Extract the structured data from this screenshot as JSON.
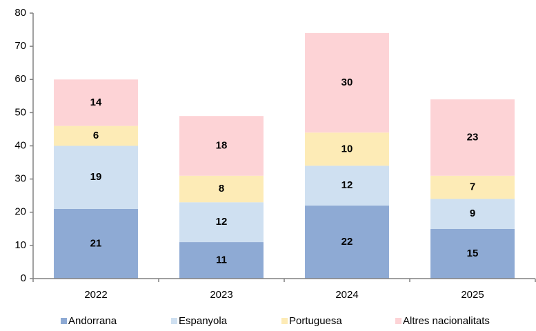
{
  "chart_data": {
    "type": "stacked_bar",
    "categories": [
      "2022",
      "2023",
      "2024",
      "2025"
    ],
    "series": [
      {
        "name": "Andorrana",
        "color": "#8eaad4",
        "values": [
          21,
          11,
          22,
          15
        ]
      },
      {
        "name": "Espanyola",
        "color": "#cfe0f1",
        "values": [
          19,
          12,
          12,
          9
        ]
      },
      {
        "name": "Portuguesa",
        "color": "#fdebb6",
        "values": [
          6,
          8,
          10,
          7
        ]
      },
      {
        "name": "Altres nacionalitats",
        "color": "#fdd3d6",
        "values": [
          14,
          18,
          30,
          23
        ]
      }
    ],
    "ylim": [
      0,
      80
    ],
    "yticks": [
      0,
      10,
      20,
      30,
      40,
      50,
      60,
      70,
      80
    ],
    "grid": false,
    "legend": "bottom"
  }
}
